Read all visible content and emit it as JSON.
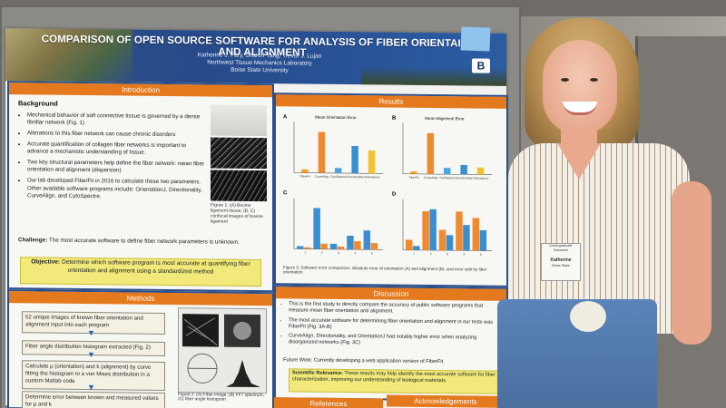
{
  "poster": {
    "title": "COMPARISON OF OPEN SOURCE SOFTWARE FOR ANALYSIS OF FIBER ORIENTAITON AND ALIGNMENT",
    "authors": "Katherine J. Fary, Sharon Yang, Trevor J. Lujan",
    "lab": "Northwest Tissue Mechanics Laboratory",
    "university": "Boise State University",
    "logo_letter": "B",
    "introduction": {
      "heading": "Introduction",
      "background_label": "Background",
      "bullets": [
        "Mechanical behavior of soft connective tissue is governed by a dense fibrillar network (Fig. 1)",
        "Alterations to this fiber network can cause chronic disorders",
        "Accurate quantification of collagen fiber networks is important to advance a mechanistic understanding of tissue.",
        "Two key structural parameters help define the fiber network: mean fiber orientation and alignment (dispersion)",
        "Our lab developed FiberFit in 2016 to calculate these two parameters. Other available software programs include: OrientationJ, Directionality, CurveAlign, and CytoSpectre."
      ],
      "figure_caption": "Figure 1: (A) Bovine ligament tissue, (B, C) confocal images of bovine ligament",
      "challenge_label": "Challenge:",
      "challenge_text": "The most accurate software to define fiber network parameters is unknown.",
      "objective_label": "Objective:",
      "objective_text": "Determine which software program is most accurate at quantifying fiber orientation and alignment using a standardized method"
    },
    "methods": {
      "heading": "Methods",
      "steps": [
        "52 unique images of known fiber orientation and alignment input into each program",
        "Fiber angle distribution histogram extracted (Fig. 2)",
        "Calculate μ (orientation) and k (alignment) by curve fitting the histogram to a von Mises distribution in a custom Matlab code",
        "Determine error between known and measured values for μ and k"
      ],
      "figure_caption": "Figure 2: (A) Fiber image, (B) FFT spectrum, (C) fiber angle histogram"
    },
    "results": {
      "heading": "Results",
      "panels": [
        "A",
        "B",
        "C",
        "D"
      ],
      "panel_titles": [
        "Mean Orientation Error",
        "Mean Alignment Error",
        "",
        ""
      ],
      "caption": "Figure 3: Software error comparison. Absolute error of orientation (A) and alignment (B), and error split by fiber orientation."
    },
    "discussion": {
      "heading": "Discussion",
      "bullets": [
        "This is the first study to directly compare the accuracy of public software programs that measure mean fiber orientation and alignment.",
        "The most accurate software for determining fiber orientation and alignment in our tests was FiberFit (Fig. 3A-B)",
        "CurveAlign, Directionality, and OrientationJ had notably higher error when analyzing disorganized networks (Fig. 3C)"
      ],
      "future_work": "Future Work: Currently developing a web application version of FiberFit.",
      "relevance_label": "Scientific Relevance:",
      "relevance_text": "These results may help identify the most accurate software for fiber characterization, improving our understanding of biological materials."
    },
    "references_heading": "References",
    "acknowledgements_heading": "Acknowledgements"
  },
  "badge": {
    "line1": "Undergraduate Research",
    "name": "Katherine",
    "line2": "Boise State"
  },
  "chart_data": [
    {
      "type": "bar",
      "title": "Mean Orientation Error",
      "categories": [
        "FiberFit",
        "CurveAlign",
        "CytoSpectre",
        "Directionality",
        "OrientationJ"
      ],
      "values": [
        0.4,
        4.8,
        0.6,
        3.2,
        2.7
      ],
      "colors": [
        "#f0a020",
        "#f08a30",
        "#4aa4e0",
        "#3a8fd0",
        "#f2c230"
      ]
    },
    {
      "type": "bar",
      "title": "Mean Alignment Error",
      "categories": [
        "FiberFit",
        "CurveAlign",
        "CytoSpectre",
        "Directionality",
        "OrientationJ"
      ],
      "values": [
        0.3,
        5.2,
        0.8,
        1.2,
        0.9
      ],
      "colors": [
        "#f0a020",
        "#f08a30",
        "#4aa4e0",
        "#3a8fd0",
        "#f2c230"
      ]
    },
    {
      "type": "bar",
      "title": "",
      "categories": [
        "1",
        "2",
        "3",
        "4",
        "5"
      ],
      "series": [
        {
          "values": [
            0.5,
            7.5,
            1.0,
            2.5,
            3.5
          ]
        },
        {
          "values": [
            0.3,
            1.0,
            0.5,
            1.5,
            1.2
          ]
        }
      ],
      "colors": [
        "#3a8fd0",
        "#f08a30"
      ]
    },
    {
      "type": "bar",
      "title": "",
      "categories": [
        "1",
        "2",
        "3",
        "4",
        "5"
      ],
      "series": [
        {
          "values": [
            1.0,
            3.8,
            2.0,
            3.8,
            3.2
          ]
        },
        {
          "values": [
            0.4,
            4.0,
            1.5,
            2.5,
            2.0
          ]
        }
      ],
      "colors": [
        "#f08a30",
        "#3a8fd0"
      ]
    }
  ]
}
